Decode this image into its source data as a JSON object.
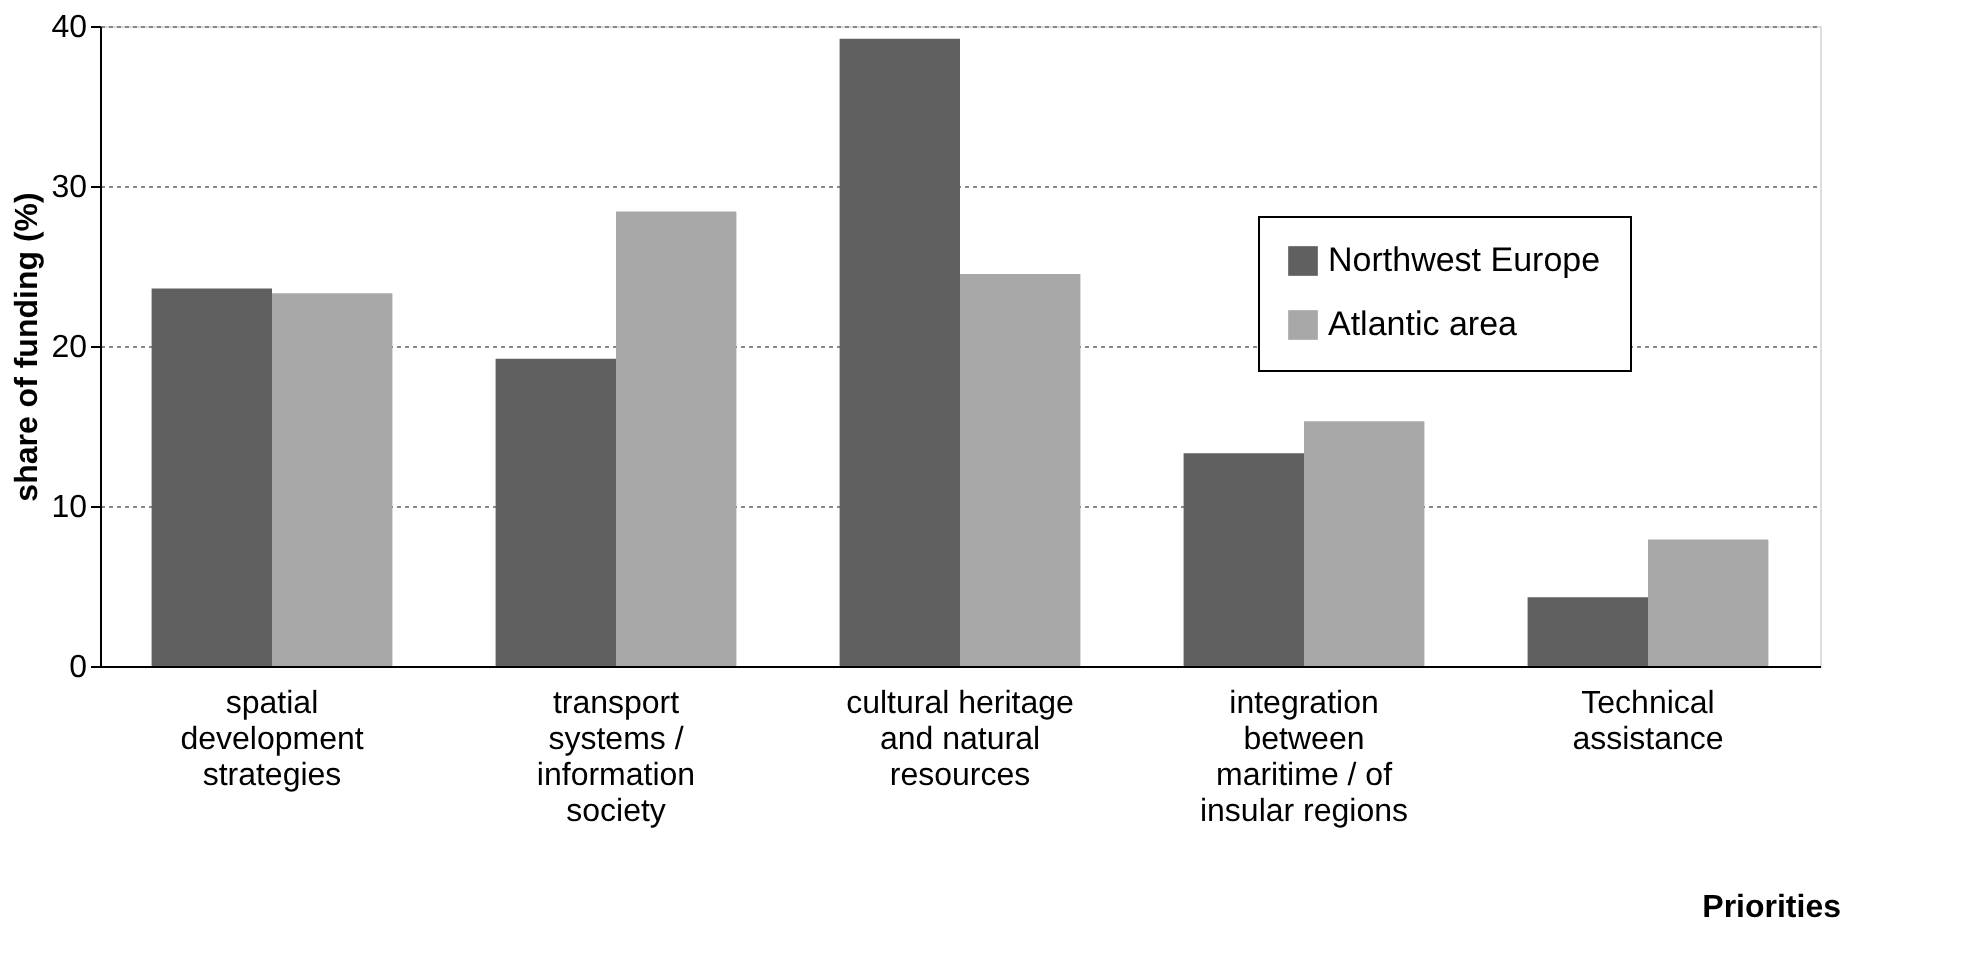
{
  "chart_data": {
    "type": "bar",
    "xlabel": "Priorities",
    "ylabel": "share of funding (%)",
    "categories": [
      "spatial\ndevelopment\nstrategies",
      "transport\nsystems /\ninformation\nsociety",
      "cultural heritage\nand natural\nresources",
      "integration\nbetween\nmaritime / of\ninsular regions",
      "Technical\nassistance"
    ],
    "series": [
      {
        "name": "Northwest Europe",
        "color": "#606060",
        "values": [
          23.6,
          19.2,
          39.2,
          13.3,
          4.3
        ]
      },
      {
        "name": "Atlantic area",
        "color": "#a8a8a8",
        "values": [
          23.3,
          28.4,
          24.5,
          15.3,
          7.9
        ]
      }
    ],
    "ylim": [
      0,
      40
    ],
    "yticks": [
      0,
      10,
      20,
      30,
      40
    ],
    "grid": "y",
    "legend": "top right"
  }
}
